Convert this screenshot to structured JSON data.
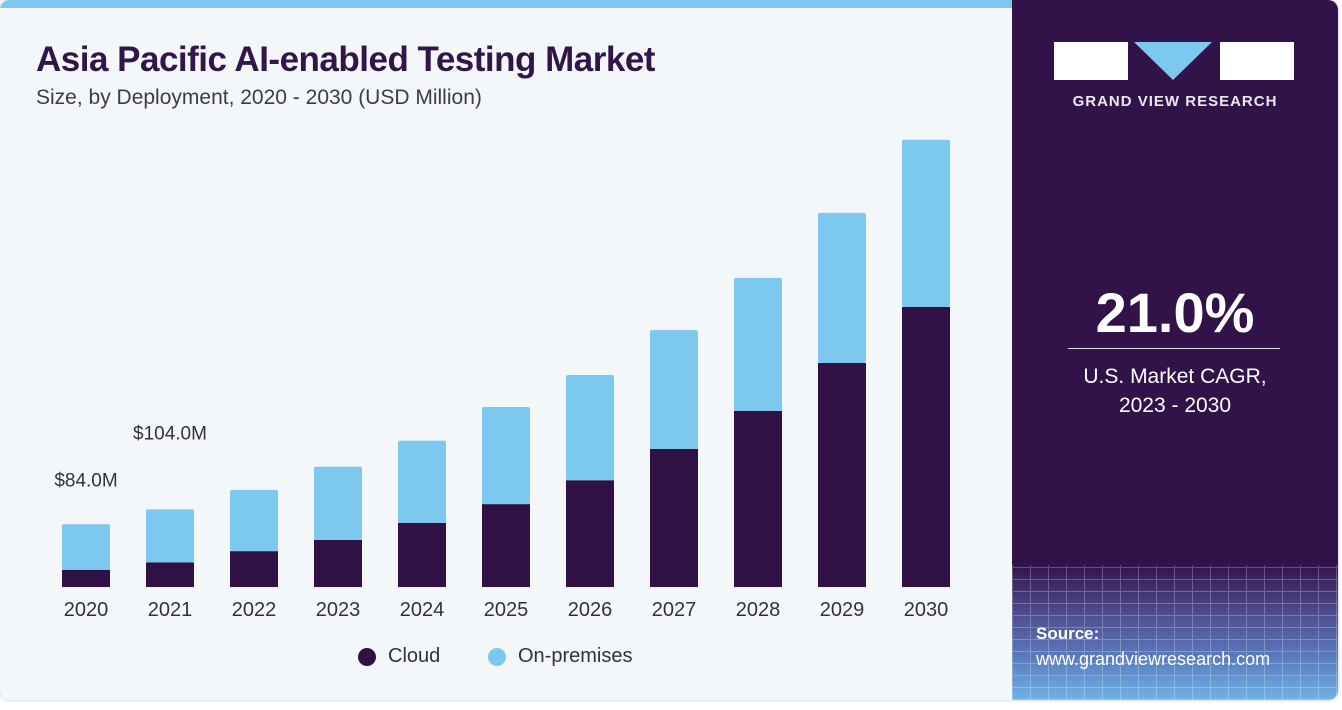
{
  "chart_data": {
    "type": "bar",
    "stacked": true,
    "title": "Asia Pacific AI-enabled Testing Market",
    "subtitle": "Size, by Deployment, 2020 - 2030 (USD Million)",
    "categories": [
      "2020",
      "2021",
      "2022",
      "2023",
      "2024",
      "2025",
      "2026",
      "2027",
      "2028",
      "2029",
      "2030"
    ],
    "series": [
      {
        "name": "Cloud",
        "color": "#2f1243",
        "values": [
          23,
          33,
          48,
          63,
          86,
          111,
          143,
          185,
          236,
          300,
          375
        ]
      },
      {
        "name": "On-premises",
        "color": "#7cc8ef",
        "values": [
          61,
          71,
          82,
          98,
          110,
          130,
          141,
          159,
          178,
          201,
          224
        ]
      }
    ],
    "annotations": [
      {
        "category": "2020",
        "label": "$84.0M"
      },
      {
        "category": "2021",
        "label": "$104.0M"
      }
    ],
    "ylim": [
      0,
      600
    ],
    "grid": false,
    "y_axis_shown": false,
    "legend_position": "bottom"
  },
  "sidebar": {
    "brand": "GRAND VIEW RESEARCH",
    "cagr_value": "21.0%",
    "cagr_label_line1": "U.S. Market CAGR,",
    "cagr_label_line2": "2023 - 2030",
    "source_label": "Source:",
    "source_url": "www.grandviewresearch.com",
    "colors": {
      "panel": "#31134a",
      "accent": "#7cc8ef"
    }
  }
}
